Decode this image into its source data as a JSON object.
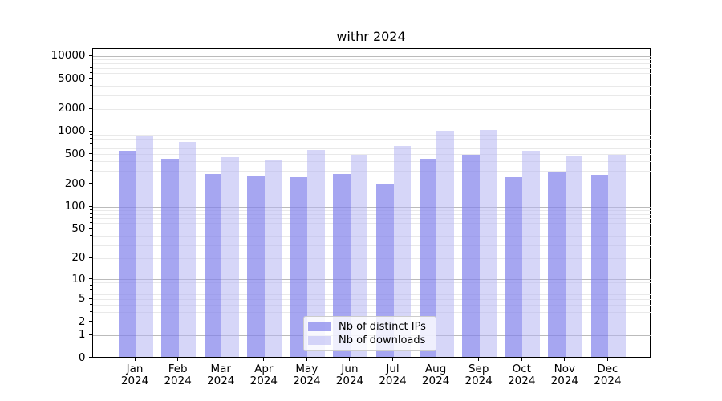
{
  "chart_data": {
    "type": "bar",
    "title": "withr 2024",
    "months": [
      "Jan",
      "Feb",
      "Mar",
      "Apr",
      "May",
      "Jun",
      "Jul",
      "Aug",
      "Sep",
      "Oct",
      "Nov",
      "Dec"
    ],
    "year_label": "2024",
    "series": [
      {
        "name": "Nb of distinct IPs",
        "color": "#8080EB",
        "alpha": 0.7,
        "values": [
          565,
          435,
          275,
          255,
          250,
          275,
          205,
          435,
          500,
          250,
          300,
          270
        ]
      },
      {
        "name": "Nb of downloads",
        "color": "#B4B4F2",
        "alpha": 0.55,
        "values": [
          870,
          740,
          465,
          425,
          570,
          500,
          645,
          1030,
          1070,
          555,
          480,
          495
        ]
      }
    ],
    "y_ticks": [
      0,
      1,
      2,
      5,
      10,
      20,
      50,
      100,
      200,
      500,
      1000,
      2000,
      5000,
      10000
    ],
    "y_scale": "log1p",
    "ylim": [
      0,
      13500
    ],
    "grid": true,
    "legend_position": "lower center",
    "axis_color": "#000000",
    "major_grid_color": "#bbbbbb",
    "minor_grid_color": "#e9e9e9",
    "background_color": "#ffffff"
  }
}
